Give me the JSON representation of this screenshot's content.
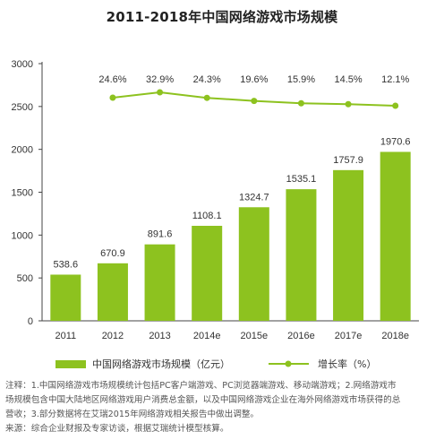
{
  "chart_data": {
    "type": "bar",
    "title": "2011-2018年中国网络游戏市场规模",
    "categories": [
      "2011",
      "2012",
      "2013",
      "2014e",
      "2015e",
      "2016e",
      "2017e",
      "2018e"
    ],
    "series": [
      {
        "name": "中国网络游戏市场规模（亿元）",
        "type": "bar",
        "color": "#8dc21f",
        "values": [
          538.6,
          670.9,
          891.6,
          1108.1,
          1324.7,
          1535.1,
          1757.9,
          1970.6
        ],
        "labels": [
          "538.6",
          "670.9",
          "891.6",
          "1108.1",
          "1324.7",
          "1535.1",
          "1757.9",
          "1970.6"
        ]
      },
      {
        "name": "增长率（%）",
        "type": "line",
        "color": "#8dc21f",
        "values": [
          null,
          24.6,
          32.9,
          24.3,
          19.6,
          15.9,
          14.5,
          12.1
        ],
        "labels": [
          "",
          "24.6%",
          "32.9%",
          "24.3%",
          "19.6%",
          "15.9%",
          "14.5%",
          "12.1%"
        ]
      }
    ],
    "yticks": [
      "0",
      "500",
      "1000",
      "1500",
      "2000",
      "2500",
      "3000"
    ],
    "ylim": [
      0,
      3000
    ],
    "grid": false,
    "legend": "bottom"
  },
  "notes": [
    "注释：1.中国网络游戏市场规模统计包括PC客户端游戏、PC浏览器端游戏、移动端游戏；2.网络游戏市",
    "场规模包含中国大陆地区网络游戏用户消费总金额，以及中国网络游戏企业在海外网络游戏市场获得的总",
    "营收；3.部分数据将在艾瑞2015年网络游戏相关报告中做出调整。",
    "来源：综合企业财报及专家访谈，根据艾瑞统计模型核算。"
  ]
}
